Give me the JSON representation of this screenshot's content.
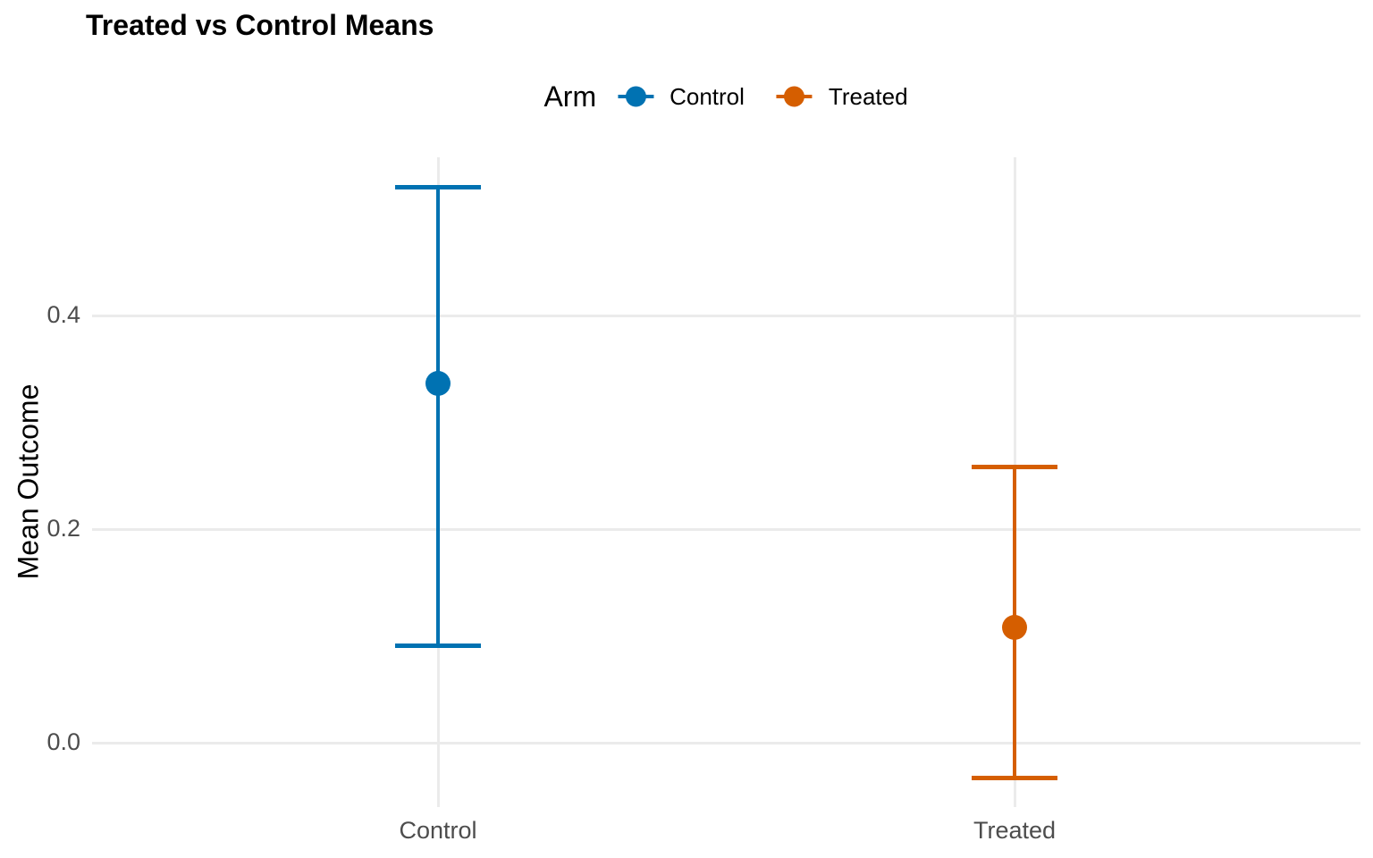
{
  "title": "Treated vs Control Means",
  "legend": {
    "title": "Arm",
    "items": [
      {
        "label": "Control",
        "color": "#0072B2"
      },
      {
        "label": "Treated",
        "color": "#D55E00"
      }
    ]
  },
  "y_axis": {
    "title": "Mean Outcome",
    "ticks": [
      {
        "label": "0.0",
        "value": 0.0
      },
      {
        "label": "0.2",
        "value": 0.2
      },
      {
        "label": "0.4",
        "value": 0.4
      }
    ]
  },
  "x_axis": {
    "categories": [
      "Control",
      "Treated"
    ]
  },
  "chart_data": {
    "type": "scatter",
    "subtype": "point-with-errorbar",
    "title": "Treated vs Control Means",
    "xlabel": "",
    "ylabel": "Mean Outcome",
    "categories": [
      "Control",
      "Treated"
    ],
    "series": [
      {
        "name": "Control",
        "color": "#0072B2",
        "mean": 0.336,
        "ci_low": 0.091,
        "ci_high": 0.52
      },
      {
        "name": "Treated",
        "color": "#D55E00",
        "mean": 0.108,
        "ci_low": -0.033,
        "ci_high": 0.258
      }
    ],
    "y_ticks": [
      0.0,
      0.2,
      0.4
    ],
    "ylim": [
      -0.06,
      0.548
    ],
    "grid": "major-only",
    "legend_title": "Arm",
    "legend_position": "top-center"
  },
  "colors": {
    "background": "#FFFFFF",
    "gridline": "#EBEBEB",
    "axis_text": "#4D4D4D",
    "title_text": "#000000",
    "control": "#0072B2",
    "treated": "#D55E00"
  }
}
